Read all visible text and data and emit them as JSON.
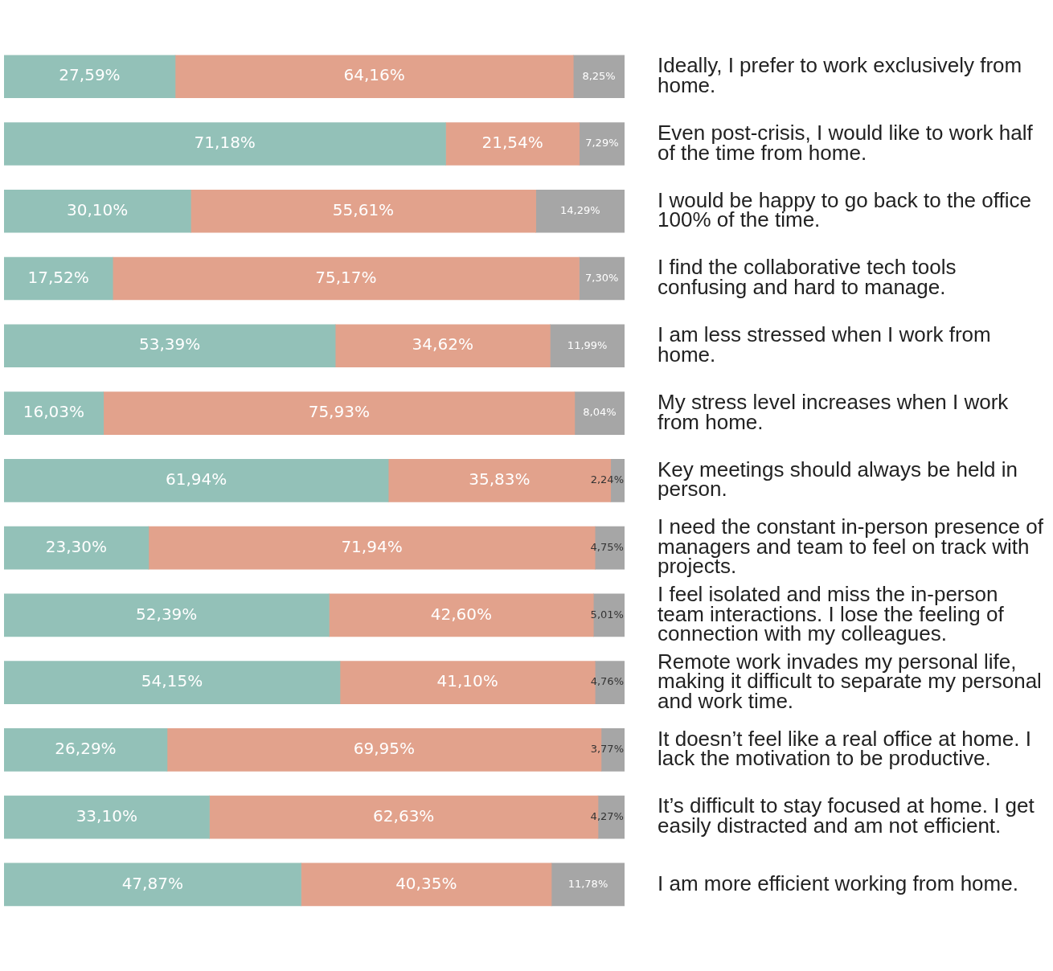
{
  "chart_data": {
    "type": "bar",
    "orientation": "horizontal",
    "stacked": true,
    "tick_labels": "y",
    "categories": [
      "Ideally, I prefer to work exclusively from home.",
      "Even post-crisis, I would like to work half of the time from home.",
      "I would be happy to go back to the office 100% of the time.",
      "I find the collaborative tech tools confusing and hard to manage.",
      "I am less stressed when I work from home.",
      "My stress level increases when I work from home.",
      "Key meetings should always be held in person.",
      "I need the constant in-person presence of managers and team to feel on track with projects.",
      "I feel isolated and miss the in-person team interactions. I lose the feeling of connection with my colleagues.",
      "Remote work invades my personal life, making it difficult to separate my personal and work time.",
      "It doesn’t feel like a real office at home. I lack the motivation to be productive.",
      "It’s difficult to stay focused at home. I get easily distracted and am not efficient.",
      "I am more efficient working from home."
    ],
    "series": [
      {
        "color": "#93c1b8",
        "values": [
          27.59,
          71.18,
          30.1,
          17.52,
          53.39,
          16.03,
          61.94,
          23.3,
          52.39,
          54.15,
          26.29,
          33.1,
          47.87
        ],
        "value_labels": [
          "27,59%",
          "71,18%",
          "30,10%",
          "17,52%",
          "53,39%",
          "16,03%",
          "61,94%",
          "23,30%",
          "52,39%",
          "54,15%",
          "26,29%",
          "33,10%",
          "47,87%"
        ]
      },
      {
        "color": "#e2a28c",
        "values": [
          64.16,
          21.54,
          55.61,
          75.17,
          34.62,
          75.93,
          35.83,
          71.94,
          42.6,
          41.1,
          69.95,
          62.63,
          40.35
        ],
        "value_labels": [
          "64,16%",
          "21,54%",
          "55,61%",
          "75,17%",
          "34,62%",
          "75,93%",
          "35,83%",
          "71,94%",
          "42,60%",
          "41,10%",
          "69,95%",
          "62,63%",
          "40,35%"
        ]
      },
      {
        "color": "#a6a6a6",
        "values": [
          8.25,
          7.29,
          14.29,
          7.3,
          11.99,
          8.04,
          2.24,
          4.75,
          5.01,
          4.76,
          3.77,
          4.27,
          11.78
        ],
        "value_labels": [
          "8,25%",
          "7,29%",
          "14,29%",
          "7,30%",
          "11,99%",
          "8,04%",
          "2,24%",
          "4,75%",
          "5,01%",
          "4,76%",
          "3,77%",
          "4,27%",
          "11,78%"
        ]
      }
    ]
  }
}
